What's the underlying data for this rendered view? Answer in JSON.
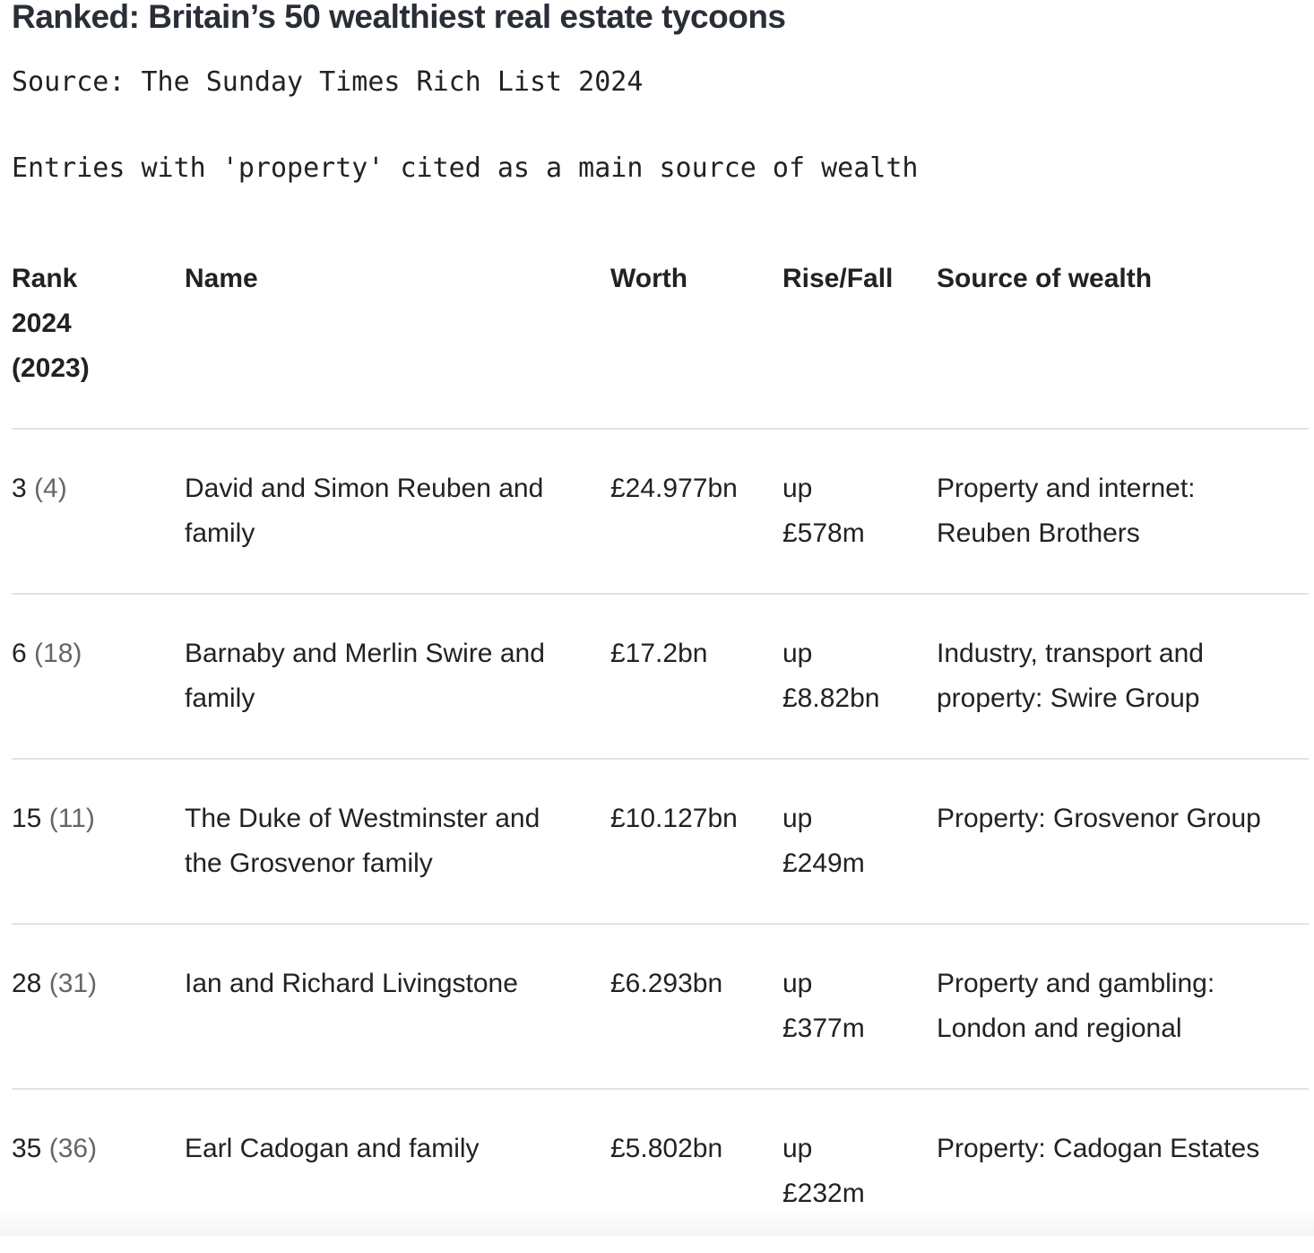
{
  "header": {
    "title": "Ranked: Britain’s 50 wealthiest real estate tycoons",
    "source": "Source: The Sunday Times Rich List 2024",
    "note": "Entries with 'property' cited as a main source of wealth"
  },
  "table": {
    "columns": [
      "Rank 2024 (2023)",
      "Name",
      "Worth",
      "Rise/Fall",
      "Source of wealth"
    ],
    "rows": [
      {
        "rank": "3",
        "previous_rank": "(4)",
        "name": "David and Simon Reuben and family",
        "worth": "£24.977bn",
        "direction": "up",
        "change": "£578m",
        "source": "Property and internet: Reuben Brothers"
      },
      {
        "rank": "6",
        "previous_rank": "(18)",
        "name": "Barnaby and Merlin Swire and family",
        "worth": "£17.2bn",
        "direction": "up",
        "change": "£8.82bn",
        "source": "Industry, transport and property: Swire Group"
      },
      {
        "rank": "15",
        "previous_rank": "(11)",
        "name": "The Duke of Westminster and the Grosvenor family",
        "worth": "£10.127bn",
        "direction": "up",
        "change": "£249m",
        "source": "Property: Grosvenor Group"
      },
      {
        "rank": "28",
        "previous_rank": "(31)",
        "name": "Ian and Richard Livingstone",
        "worth": "£6.293bn",
        "direction": "up",
        "change": "£377m",
        "source": "Property and gambling: London and regional"
      },
      {
        "rank": "35",
        "previous_rank": "(36)",
        "name": "Earl Cadogan and family",
        "worth": "£5.802bn",
        "direction": "up",
        "change": "£232m",
        "source": "Property: Cadogan Estates"
      }
    ]
  }
}
